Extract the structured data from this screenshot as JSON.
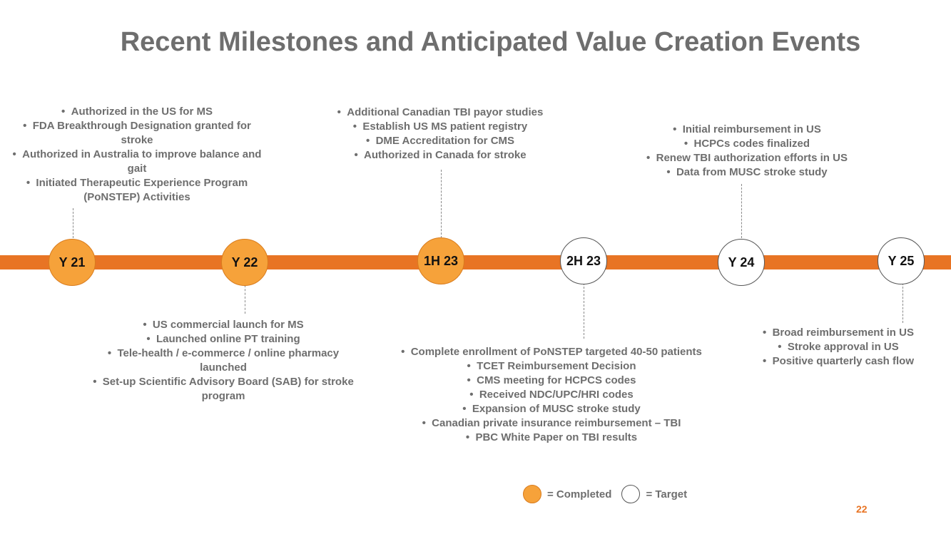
{
  "title": "Recent Milestones and Anticipated Value Creation Events",
  "timeline": [
    {
      "label": "Y 21",
      "status": "completed"
    },
    {
      "label": "Y 22",
      "status": "completed"
    },
    {
      "label": "1H 23",
      "status": "completed"
    },
    {
      "label": "2H 23",
      "status": "target"
    },
    {
      "label": "Y 24",
      "status": "target"
    },
    {
      "label": "Y 25",
      "status": "target"
    }
  ],
  "milestones": {
    "y21": [
      "Authorized in the US for MS",
      "FDA Breakthrough Designation granted for stroke",
      "Authorized in Australia to improve balance and gait",
      "Initiated Therapeutic Experience Program (PoNSTEP) Activities"
    ],
    "y22": [
      "US commercial launch for MS",
      "Launched online PT training",
      "Tele-health / e-commerce / online pharmacy launched",
      "Set-up Scientific Advisory Board (SAB) for stroke program"
    ],
    "h1_23": [
      "Additional Canadian TBI payor studies",
      "Establish US MS patient registry",
      "DME Accreditation for CMS",
      "Authorized in Canada for stroke"
    ],
    "h2_23": [
      "Complete enrollment of PoNSTEP targeted 40-50 patients",
      "TCET Reimbursement Decision",
      "CMS meeting for HCPCS codes",
      "Received NDC/UPC/HRI codes",
      "Expansion of MUSC stroke study",
      "Canadian private insurance reimbursement – TBI",
      "PBC White Paper on TBI results"
    ],
    "y24": [
      "Initial reimbursement in US",
      "HCPCs codes finalized",
      "Renew TBI authorization efforts in US",
      "Data from MUSC stroke study"
    ],
    "y25": [
      "Broad reimbursement in US",
      "Stroke approval in US",
      "Positive quarterly cash flow"
    ]
  },
  "legend": {
    "completed": "= Completed",
    "target": "= Target"
  },
  "page_number": "22",
  "colors": {
    "accent": "#e87424",
    "completed_fill": "#f6a23a",
    "text": "#6e6e6e"
  }
}
